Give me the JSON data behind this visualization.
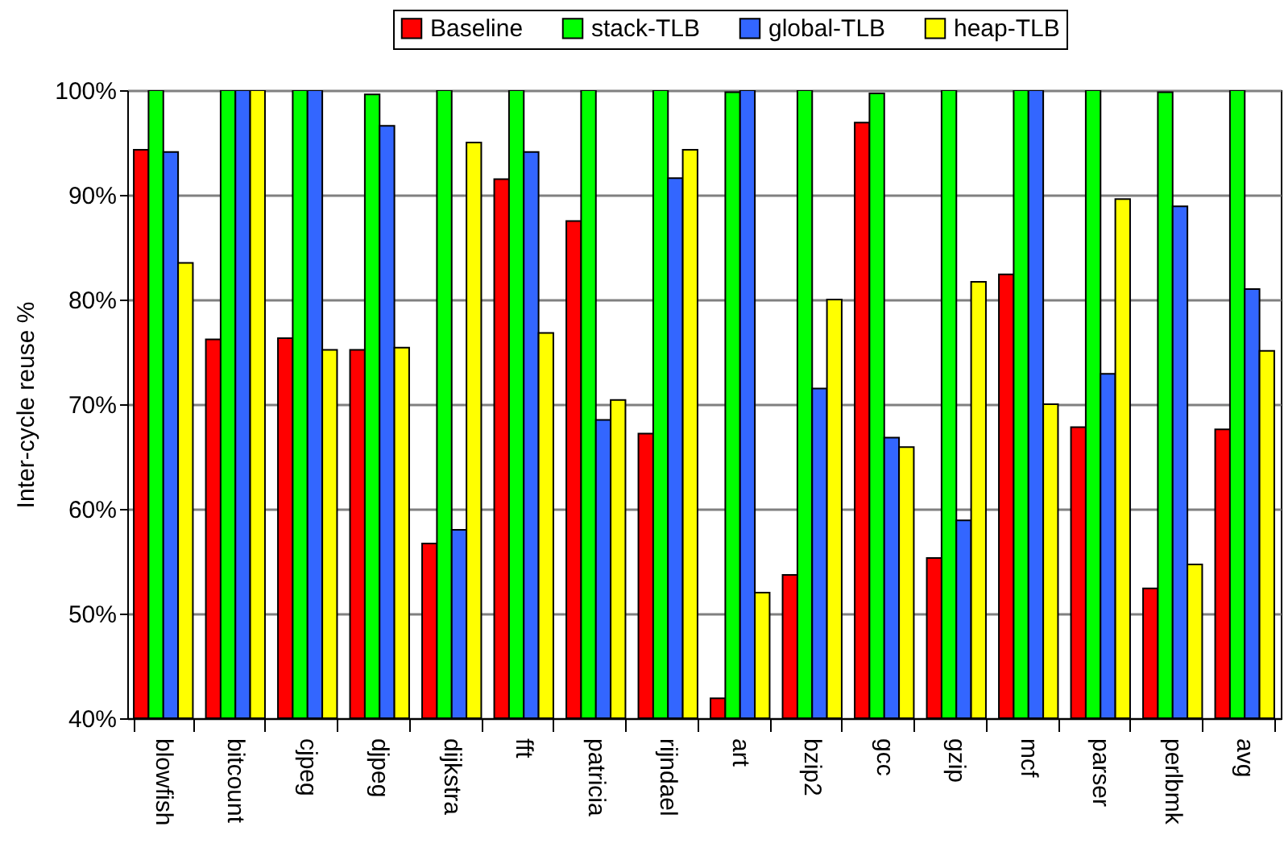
{
  "chart_data": {
    "type": "bar",
    "ylabel": "Inter-cycle reuse %",
    "categories": [
      "blowfish",
      "bitcount",
      "cjpeg",
      "djpeg",
      "dijkstra",
      "fft",
      "patricia",
      "rijndael",
      "art",
      "bzip2",
      "gcc",
      "gzip",
      "mcf",
      "parser",
      "perlbmk",
      "avg"
    ],
    "series": [
      {
        "name": "Baseline",
        "color": "#ff0000",
        "values": [
          94.3,
          76.2,
          76.3,
          75.2,
          56.7,
          91.5,
          87.5,
          67.2,
          41.9,
          53.7,
          96.9,
          55.3,
          82.4,
          67.8,
          52.4,
          67.6
        ]
      },
      {
        "name": "stack-TLB",
        "color": "#00ff00",
        "values": [
          100,
          100,
          100,
          99.6,
          100,
          100,
          100,
          100,
          99.8,
          100,
          99.7,
          100,
          100,
          100,
          99.8,
          100
        ]
      },
      {
        "name": "global-TLB",
        "color": "#3366ff",
        "values": [
          94.1,
          100,
          100,
          96.6,
          58,
          94.1,
          68.5,
          91.6,
          100,
          71.5,
          66.8,
          58.9,
          100,
          72.9,
          88.9,
          81
        ]
      },
      {
        "name": "heap-TLB",
        "color": "#ffff00",
        "values": [
          83.5,
          100,
          75.2,
          75.4,
          95,
          76.8,
          70.4,
          94.3,
          52,
          80,
          65.9,
          81.7,
          70,
          89.6,
          54.7,
          75.1
        ]
      }
    ],
    "ylim": [
      40,
      100
    ],
    "yticks": [
      {
        "value": 40,
        "label": "40%"
      },
      {
        "value": 50,
        "label": "50%"
      },
      {
        "value": 60,
        "label": "60%"
      },
      {
        "value": 70,
        "label": "70%"
      },
      {
        "value": 80,
        "label": "80%"
      },
      {
        "value": 90,
        "label": "90%"
      },
      {
        "value": 100,
        "label": "100%"
      }
    ],
    "grid": "y",
    "legend": "top"
  }
}
